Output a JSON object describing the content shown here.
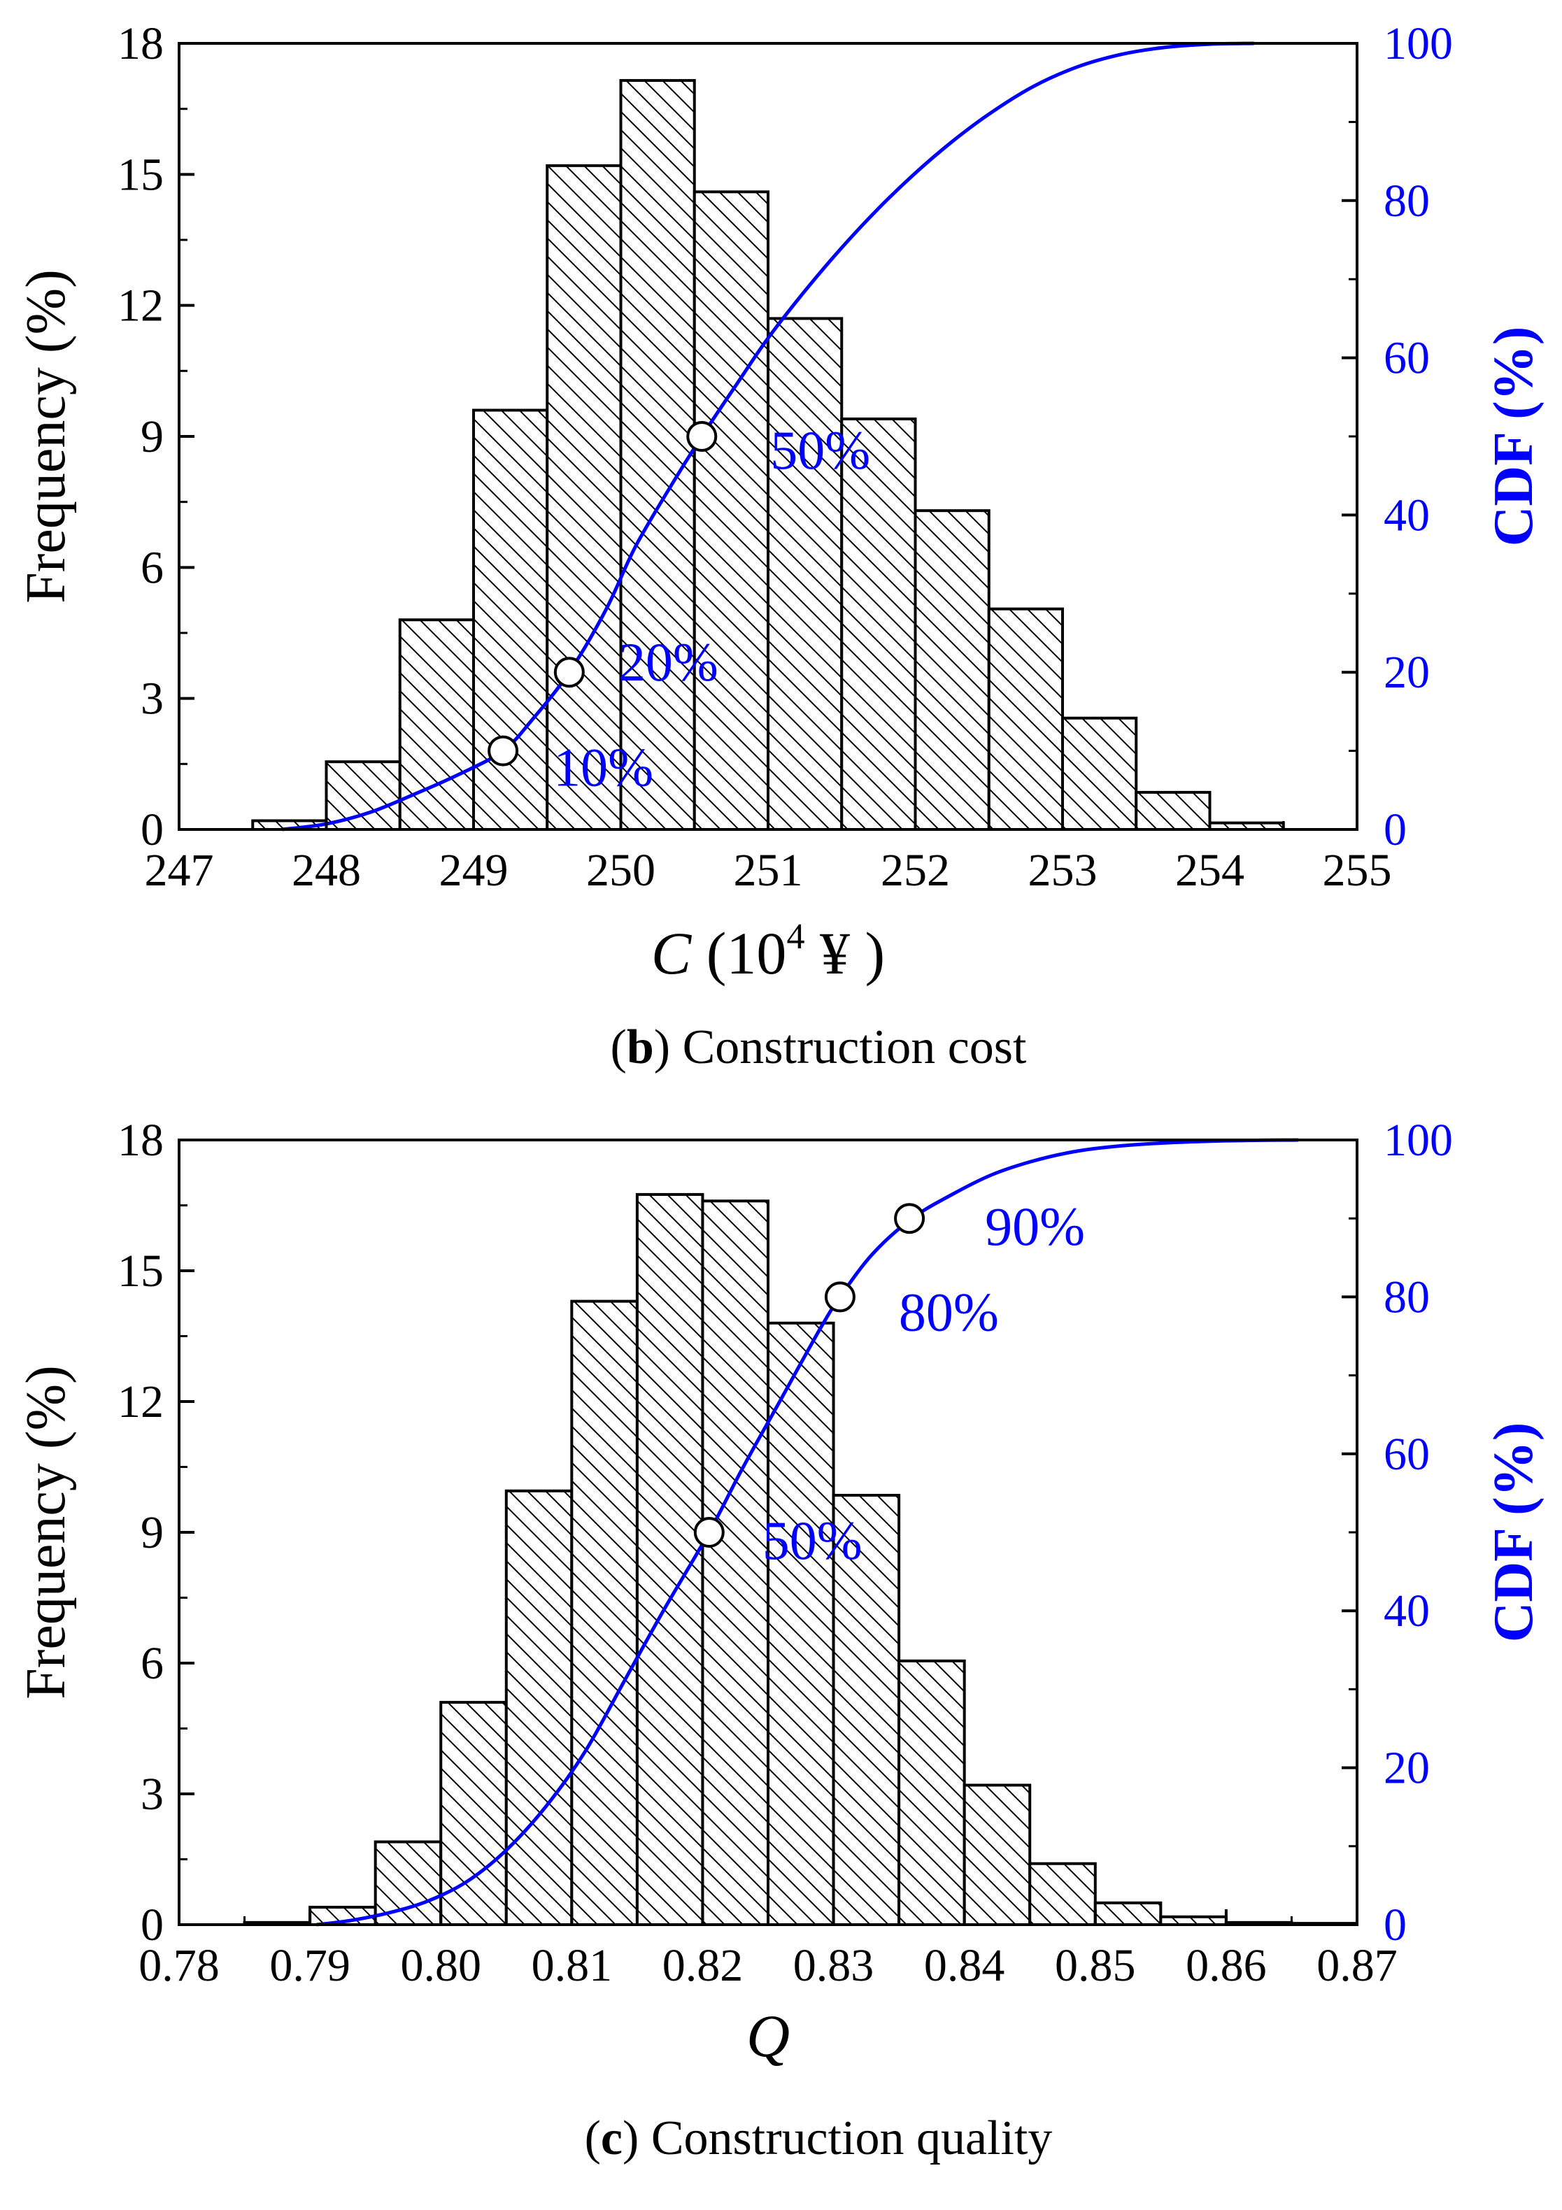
{
  "chart_data": [
    {
      "type": "bar",
      "panel_id": "b",
      "caption": {
        "letter": "b",
        "text": " Construction cost"
      },
      "xlabel_var": "C",
      "xlabel_unit": " (10",
      "xlabel_sup": "4",
      "xlabel_tail": " ¥ )",
      "ylabel": "Frequency (%)",
      "y2label": "CDF (%)",
      "xlim": [
        247,
        255
      ],
      "ylim": [
        0,
        18
      ],
      "y2lim": [
        0,
        100
      ],
      "xticks": [
        "247",
        "248",
        "249",
        "250",
        "251",
        "252",
        "253",
        "254",
        "255"
      ],
      "yticks": [
        "0",
        "3",
        "6",
        "9",
        "12",
        "15",
        "18"
      ],
      "y2ticks": [
        "0",
        "20",
        "40",
        "60",
        "80",
        "100"
      ],
      "bin_width": 0.5,
      "bins_start": [
        247.5,
        248.0,
        248.5,
        249.0,
        249.5,
        250.0,
        250.5,
        251.0,
        251.5,
        252.0,
        252.5,
        253.0,
        253.5,
        254.0
      ],
      "frequency": [
        0.2,
        1.55,
        4.8,
        9.6,
        15.2,
        17.15,
        14.6,
        11.7,
        9.4,
        7.3,
        5.05,
        2.55,
        0.85,
        0.15
      ],
      "cdf": {
        "x": [
          247.7,
          248.0,
          248.3,
          248.6,
          248.9,
          249.2,
          249.4,
          249.65,
          249.9,
          250.1,
          250.35,
          250.55,
          250.8,
          251.0,
          251.25,
          251.5,
          251.75,
          252.0,
          252.25,
          252.5,
          252.8,
          253.1,
          253.4,
          253.7,
          254.0,
          254.3
        ],
        "y": [
          0,
          0.7,
          2.2,
          4.5,
          7.0,
          10.0,
          14.0,
          20.0,
          28.0,
          36.0,
          44.0,
          50.0,
          57.0,
          62.5,
          68.5,
          74.0,
          79.0,
          83.5,
          87.5,
          91.0,
          94.5,
          97.0,
          98.6,
          99.5,
          99.9,
          100
        ]
      },
      "markers": [
        {
          "x": 249.2,
          "cdf": 10,
          "label": "10%"
        },
        {
          "x": 249.65,
          "cdf": 20,
          "label": "20%"
        },
        {
          "x": 250.55,
          "cdf": 50,
          "label": "50%"
        }
      ]
    },
    {
      "type": "bar",
      "panel_id": "c",
      "caption": {
        "letter": "c",
        "text": " Construction quality"
      },
      "xlabel_var": "Q",
      "ylabel": "Frequency (%)",
      "y2label": "CDF (%)",
      "xlim": [
        0.78,
        0.87
      ],
      "ylim": [
        0,
        18
      ],
      "y2lim": [
        0,
        100
      ],
      "xticks": [
        "0.78",
        "0.79",
        "0.80",
        "0.81",
        "0.82",
        "0.83",
        "0.84",
        "0.85",
        "0.86",
        "0.87"
      ],
      "yticks": [
        "0",
        "3",
        "6",
        "9",
        "12",
        "15",
        "18"
      ],
      "y2ticks": [
        "0",
        "20",
        "40",
        "60",
        "80",
        "100"
      ],
      "bin_width": 0.005,
      "bins_start": [
        0.785,
        0.79,
        0.795,
        0.8,
        0.805,
        0.81,
        0.815,
        0.82,
        0.825,
        0.83,
        0.835,
        0.84,
        0.845,
        0.85,
        0.855,
        0.86,
        0.865
      ],
      "frequency": [
        0.05,
        0.4,
        1.9,
        5.1,
        9.95,
        14.3,
        16.75,
        16.6,
        13.8,
        9.85,
        6.05,
        3.2,
        1.4,
        0.5,
        0.18,
        0.05,
        0.03
      ],
      "cdf": {
        "x": [
          0.7905,
          0.793,
          0.796,
          0.799,
          0.802,
          0.805,
          0.808,
          0.811,
          0.814,
          0.817,
          0.8205,
          0.823,
          0.826,
          0.829,
          0.8305,
          0.833,
          0.836,
          0.839,
          0.842,
          0.845,
          0.848,
          0.851,
          0.855,
          0.86,
          0.8655
        ],
        "y": [
          0,
          0.5,
          1.5,
          3.0,
          5.5,
          9.5,
          15.0,
          22.0,
          31.0,
          40.0,
          50.0,
          58.0,
          67.0,
          76.0,
          80.0,
          85.5,
          90.0,
          93.0,
          95.5,
          97.2,
          98.4,
          99.1,
          99.6,
          99.9,
          100
        ]
      },
      "markers": [
        {
          "x": 0.8205,
          "cdf": 50,
          "label": "50%"
        },
        {
          "x": 0.8305,
          "cdf": 80,
          "label": "80%"
        },
        {
          "x": 0.8358,
          "cdf": 90,
          "label": "90%"
        }
      ]
    }
  ]
}
